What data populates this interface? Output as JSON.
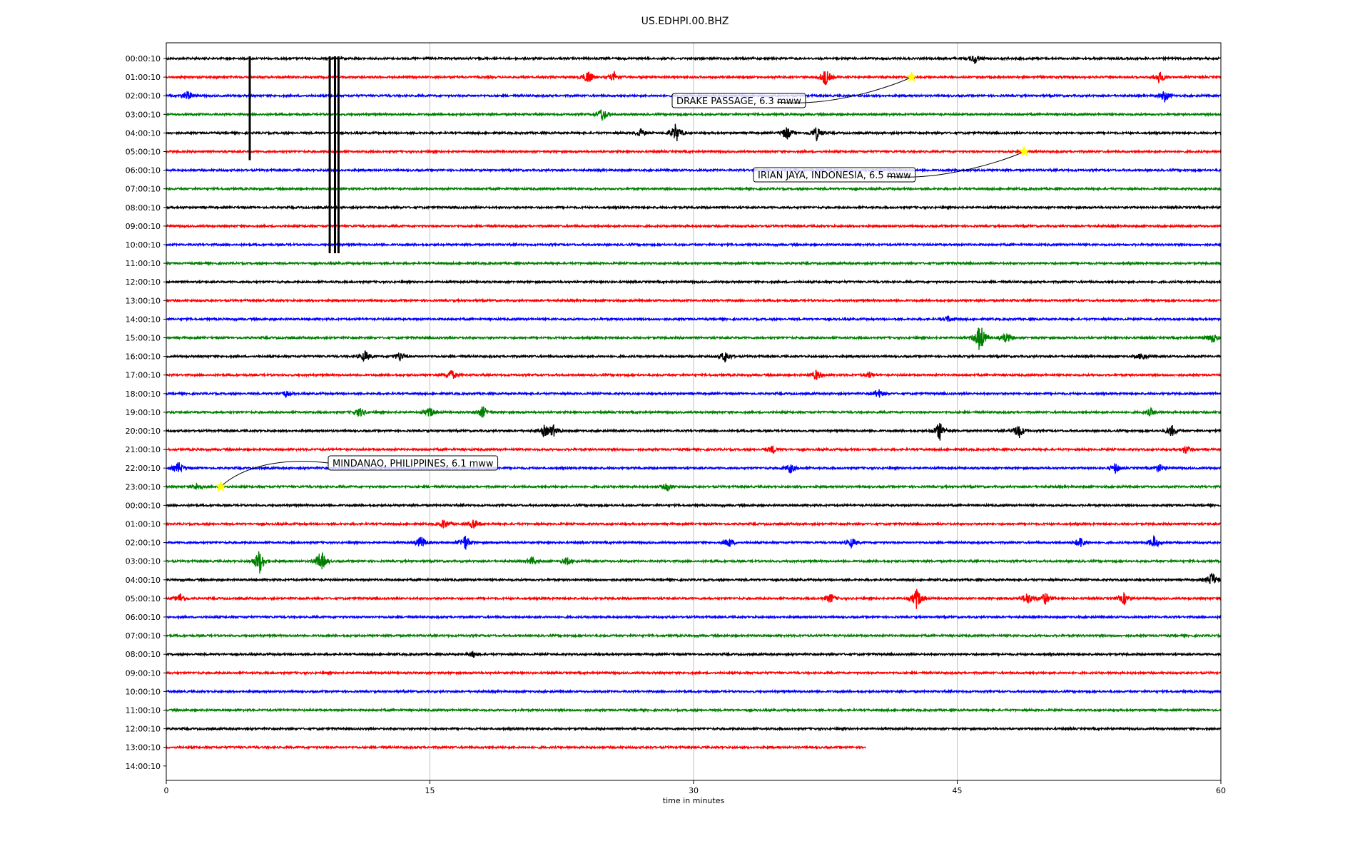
{
  "chart_data": {
    "type": "line",
    "title": "US.EDHPI.00.BHZ",
    "xlabel": "time in minutes",
    "ylabel": "",
    "xlim": [
      0,
      60
    ],
    "xticks": [
      0,
      15,
      30,
      45,
      60
    ],
    "grid": "vertical lines at 15-minute ticks",
    "row_labels": [
      "00:00:10",
      "01:00:10",
      "02:00:10",
      "03:00:10",
      "04:00:10",
      "05:00:10",
      "06:00:10",
      "07:00:10",
      "08:00:10",
      "09:00:10",
      "10:00:10",
      "11:00:10",
      "12:00:10",
      "13:00:10",
      "14:00:10",
      "15:00:10",
      "16:00:10",
      "17:00:10",
      "18:00:10",
      "19:00:10",
      "20:00:10",
      "21:00:10",
      "22:00:10",
      "23:00:10",
      "00:00:10",
      "01:00:10",
      "02:00:10",
      "03:00:10",
      "04:00:10",
      "05:00:10",
      "06:00:10",
      "07:00:10",
      "08:00:10",
      "09:00:10",
      "10:00:10",
      "11:00:10",
      "12:00:10",
      "13:00:10",
      "14:00:10"
    ],
    "trace_colors": [
      "#000000",
      "#ff0000",
      "#0000ff",
      "#008000"
    ],
    "last_trace_end_minute": 39.8,
    "marker_color": "#ffff00",
    "events": [
      {
        "label": "DRAKE PASSAGE, 6.3 mww",
        "row": 1,
        "minute": 42.4
      },
      {
        "label": "IRIAN JAYA, INDONESIA, 6.5 mww",
        "row": 5,
        "minute": 48.8
      },
      {
        "label": "MINDANAO, PHILIPPINES, 6.1 mww",
        "row": 23,
        "minute": 3.1
      }
    ],
    "bursts": [
      {
        "row": 0,
        "minute": 46.0,
        "amp": 0.5
      },
      {
        "row": 1,
        "minute": 24.0,
        "amp": 0.7
      },
      {
        "row": 1,
        "minute": 25.5,
        "amp": 0.5
      },
      {
        "row": 1,
        "minute": 37.5,
        "amp": 0.9
      },
      {
        "row": 1,
        "minute": 56.5,
        "amp": 0.6
      },
      {
        "row": 2,
        "minute": 1.2,
        "amp": 0.5
      },
      {
        "row": 2,
        "minute": 56.8,
        "amp": 0.6
      },
      {
        "row": 3,
        "minute": 24.8,
        "amp": 0.7
      },
      {
        "row": 4,
        "minute": 27.0,
        "amp": 0.4
      },
      {
        "row": 4,
        "minute": 29.0,
        "amp": 1.0
      },
      {
        "row": 4,
        "minute": 35.3,
        "amp": 0.7
      },
      {
        "row": 4,
        "minute": 37.0,
        "amp": 0.7
      },
      {
        "row": 14,
        "minute": 44.5,
        "amp": 0.3
      },
      {
        "row": 15,
        "minute": 46.3,
        "amp": 1.6
      },
      {
        "row": 15,
        "minute": 47.8,
        "amp": 0.5
      },
      {
        "row": 15,
        "minute": 59.5,
        "amp": 0.5
      },
      {
        "row": 16,
        "minute": 11.3,
        "amp": 0.6
      },
      {
        "row": 16,
        "minute": 13.3,
        "amp": 0.5
      },
      {
        "row": 16,
        "minute": 31.8,
        "amp": 0.6
      },
      {
        "row": 16,
        "minute": 55.5,
        "amp": 0.4
      },
      {
        "row": 17,
        "minute": 16.2,
        "amp": 0.6
      },
      {
        "row": 17,
        "minute": 37.0,
        "amp": 0.5
      },
      {
        "row": 17,
        "minute": 40.0,
        "amp": 0.3
      },
      {
        "row": 18,
        "minute": 6.8,
        "amp": 0.3
      },
      {
        "row": 18,
        "minute": 40.5,
        "amp": 0.5
      },
      {
        "row": 19,
        "minute": 11.0,
        "amp": 0.5
      },
      {
        "row": 19,
        "minute": 15.0,
        "amp": 0.5
      },
      {
        "row": 19,
        "minute": 18.0,
        "amp": 0.6
      },
      {
        "row": 19,
        "minute": 56.0,
        "amp": 0.4
      },
      {
        "row": 20,
        "minute": 21.5,
        "amp": 0.5
      },
      {
        "row": 20,
        "minute": 22.0,
        "amp": 0.6
      },
      {
        "row": 20,
        "minute": 44.0,
        "amp": 1.0
      },
      {
        "row": 20,
        "minute": 48.5,
        "amp": 0.8
      },
      {
        "row": 20,
        "minute": 57.2,
        "amp": 0.6
      },
      {
        "row": 21,
        "minute": 34.5,
        "amp": 0.4
      },
      {
        "row": 21,
        "minute": 58.0,
        "amp": 0.4
      },
      {
        "row": 22,
        "minute": 0.7,
        "amp": 0.6
      },
      {
        "row": 22,
        "minute": 35.5,
        "amp": 0.5
      },
      {
        "row": 22,
        "minute": 54.0,
        "amp": 0.5
      },
      {
        "row": 22,
        "minute": 56.5,
        "amp": 0.4
      },
      {
        "row": 23,
        "minute": 1.8,
        "amp": 0.4
      },
      {
        "row": 23,
        "minute": 28.5,
        "amp": 0.4
      },
      {
        "row": 25,
        "minute": 15.8,
        "amp": 0.5
      },
      {
        "row": 25,
        "minute": 17.5,
        "amp": 0.5
      },
      {
        "row": 26,
        "minute": 14.5,
        "amp": 0.7
      },
      {
        "row": 26,
        "minute": 17.0,
        "amp": 0.8
      },
      {
        "row": 26,
        "minute": 32.0,
        "amp": 0.5
      },
      {
        "row": 26,
        "minute": 39.0,
        "amp": 0.5
      },
      {
        "row": 26,
        "minute": 52.0,
        "amp": 0.6
      },
      {
        "row": 26,
        "minute": 56.2,
        "amp": 0.7
      },
      {
        "row": 27,
        "minute": 5.3,
        "amp": 1.3
      },
      {
        "row": 27,
        "minute": 8.8,
        "amp": 1.1
      },
      {
        "row": 27,
        "minute": 20.8,
        "amp": 0.4
      },
      {
        "row": 27,
        "minute": 22.8,
        "amp": 0.4
      },
      {
        "row": 28,
        "minute": 59.5,
        "amp": 0.8
      },
      {
        "row": 29,
        "minute": 0.8,
        "amp": 0.5
      },
      {
        "row": 29,
        "minute": 37.8,
        "amp": 0.5
      },
      {
        "row": 29,
        "minute": 42.7,
        "amp": 1.1
      },
      {
        "row": 29,
        "minute": 49.0,
        "amp": 0.7
      },
      {
        "row": 29,
        "minute": 50.0,
        "amp": 0.6
      },
      {
        "row": 29,
        "minute": 54.5,
        "amp": 0.6
      },
      {
        "row": 32,
        "minute": 17.5,
        "amp": 0.3
      }
    ],
    "spikes": [
      {
        "rows": [
          0,
          5
        ],
        "minute": 4.75
      },
      {
        "rows": [
          0,
          10
        ],
        "minute": 9.3
      },
      {
        "rows": [
          0,
          10
        ],
        "minute": 9.6
      },
      {
        "rows": [
          0,
          10
        ],
        "minute": 9.8
      }
    ]
  }
}
